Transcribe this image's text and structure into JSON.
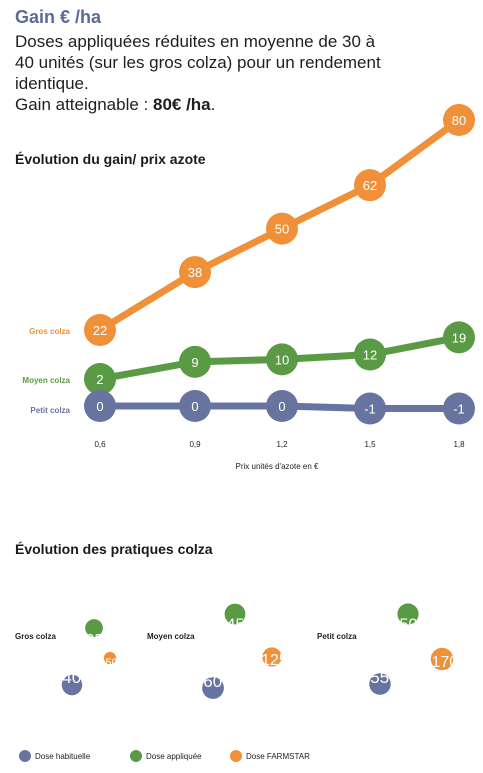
{
  "header": {
    "title": "Gain € /ha",
    "line1": "Doses appliquées réduites en moyenne de 30 à",
    "line2": "40 unités (sur les gros colza) pour un rendement",
    "line3": "identique.",
    "gain_label": "Gain atteignable : ",
    "gain_value": "80€ /ha",
    "gain_end": "."
  },
  "colors": {
    "gros": "#f0913a",
    "moyen": "#5a9a44",
    "petit": "#6874a0"
  },
  "chart_data": [
    {
      "type": "line",
      "title": "Évolution du gain/ prix azote",
      "xlabel": "Prix unités d'azote en €",
      "ylabel": "",
      "x": [
        "0,6",
        "0,9",
        "1,2",
        "1,5",
        "1,8"
      ],
      "series": [
        {
          "name": "Gros colza",
          "key": "gros",
          "values": [
            22,
            38,
            50,
            62,
            80
          ]
        },
        {
          "name": "Moyen colza",
          "key": "moyen",
          "values": [
            2,
            9,
            10,
            12,
            19
          ]
        },
        {
          "name": "Petit colza",
          "key": "petit",
          "values": [
            0,
            0,
            0,
            -1,
            -1
          ]
        }
      ]
    },
    {
      "type": "bubble",
      "title": "Évolution des pratiques colza",
      "groups": [
        {
          "name": "Gros colza",
          "habituelle": 140,
          "appliquee": 105,
          "farmstar": 50
        },
        {
          "name": "Moyen colza",
          "habituelle": 160,
          "appliquee": 145,
          "farmstar": 125
        },
        {
          "name": "Petit colza",
          "habituelle": 155,
          "appliquee": 150,
          "farmstar": 170
        }
      ],
      "legend": [
        {
          "label": "Dose habituelle",
          "key": "petit"
        },
        {
          "label": "Dose appliquée",
          "key": "moyen"
        },
        {
          "label": "Dose FARMSTAR",
          "key": "gros"
        }
      ]
    }
  ]
}
